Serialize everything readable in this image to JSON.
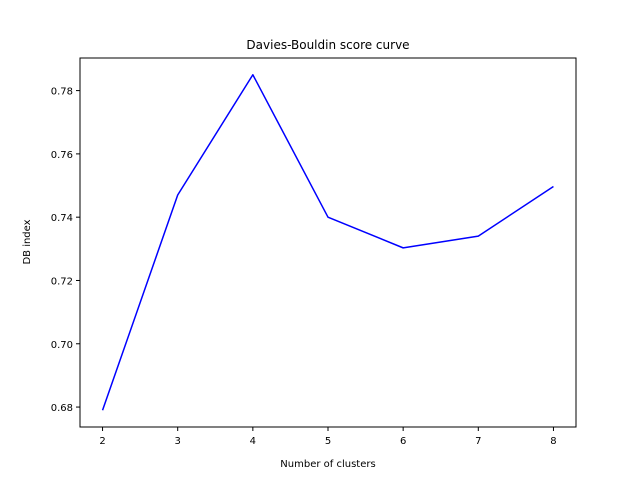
{
  "chart_data": {
    "type": "line",
    "title": "Davies-Bouldin score curve",
    "xlabel": "Number of clusters",
    "ylabel": "DB index",
    "x": [
      2,
      3,
      4,
      5,
      6,
      7,
      8
    ],
    "series": [
      {
        "values": [
          0.679,
          0.747,
          0.785,
          0.74,
          0.7303,
          0.734,
          0.7497
        ],
        "color": "#0000ff"
      }
    ],
    "xticks": [
      2,
      3,
      4,
      5,
      6,
      7,
      8
    ],
    "yticks": [
      0.68,
      0.7,
      0.72,
      0.74,
      0.76,
      0.78
    ],
    "ytick_labels": [
      "0.68",
      "0.70",
      "0.72",
      "0.74",
      "0.76",
      "0.78"
    ],
    "xlim": [
      1.7,
      8.3
    ],
    "ylim": [
      0.6737,
      0.7903
    ],
    "grid": false
  }
}
